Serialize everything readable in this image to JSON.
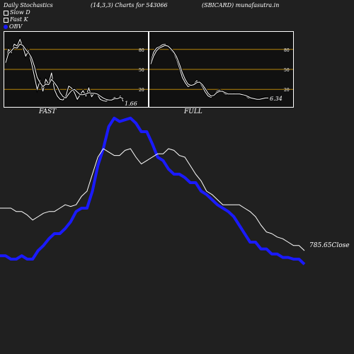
{
  "header": {
    "title": "Daily Stochastics",
    "params": "(14,3,3) Charts for 543066",
    "site": "(SBICARD) munafasutra.in"
  },
  "legend": {
    "slow_d": "Slow  D",
    "fast_k": "Fast K",
    "obv": "OBV"
  },
  "colors": {
    "obv": "#1a1aff",
    "close": "#ffffff",
    "band": "#b8860b",
    "panel_bg": "#111111",
    "bg": "#202020"
  },
  "chart_data": [
    {
      "type": "line",
      "title": "FAST",
      "ylim": [
        0,
        100
      ],
      "ticks": [
        20,
        50,
        80
      ],
      "last_value_label": "1.66",
      "series": [
        {
          "name": "Fast K",
          "values": [
            62,
            80,
            75,
            88,
            85,
            95,
            84,
            70,
            78,
            60,
            40,
            20,
            33,
            17,
            35,
            28,
            45,
            20,
            10,
            5,
            4,
            10,
            25,
            22,
            15,
            5,
            12,
            18,
            10,
            22,
            9,
            15,
            12,
            5,
            3,
            2,
            4,
            5,
            8,
            6,
            10,
            2
          ]
        },
        {
          "name": "Slow  D",
          "values": [
            60,
            74,
            78,
            83,
            82,
            88,
            86,
            80,
            75,
            68,
            55,
            38,
            30,
            24,
            28,
            27,
            35,
            30,
            24,
            15,
            9,
            7,
            13,
            18,
            20,
            16,
            12,
            12,
            13,
            15,
            14,
            14,
            13,
            10,
            7,
            5,
            4,
            4,
            6,
            6,
            8,
            6
          ]
        }
      ]
    },
    {
      "type": "line",
      "title": "FULL",
      "ylim": [
        0,
        100
      ],
      "ticks": [
        20,
        50,
        80
      ],
      "last_value_label": "6.34",
      "series": [
        {
          "name": "Fast K",
          "values": [
            62,
            76,
            82,
            84,
            87,
            88,
            84,
            79,
            74,
            65,
            52,
            38,
            30,
            24,
            26,
            28,
            33,
            30,
            24,
            16,
            10,
            8,
            12,
            17,
            19,
            16,
            13,
            12,
            13,
            14,
            13,
            13,
            12,
            10,
            7,
            6,
            5,
            5,
            6,
            7,
            8,
            6
          ]
        },
        {
          "name": "Slow  D",
          "values": [
            58,
            70,
            78,
            82,
            84,
            86,
            85,
            81,
            76,
            69,
            58,
            45,
            35,
            28,
            26,
            27,
            30,
            31,
            27,
            21,
            14,
            10,
            11,
            15,
            17,
            17,
            15,
            13,
            13,
            13,
            13,
            13,
            12,
            11,
            9,
            7,
            6,
            5,
            5,
            6,
            7,
            7
          ]
        }
      ]
    },
    {
      "type": "line",
      "ylim": [
        0,
        100
      ],
      "last_value_label": "785.65",
      "close_label": "Close",
      "series": [
        {
          "name": "OBV",
          "values": [
            12,
            12,
            10,
            10,
            12,
            10,
            10,
            15,
            18,
            22,
            25,
            25,
            28,
            32,
            38,
            40,
            40,
            50,
            65,
            75,
            88,
            93,
            91,
            92,
            93,
            90,
            85,
            85,
            78,
            70,
            68,
            63,
            60,
            60,
            58,
            55,
            55,
            50,
            48,
            45,
            42,
            40,
            38,
            35,
            30,
            25,
            20,
            20,
            16,
            16,
            13,
            13,
            11,
            11,
            10,
            10,
            7
          ]
        },
        {
          "name": "Close",
          "values": [
            40,
            40,
            40,
            38,
            38,
            36,
            33,
            35,
            37,
            38,
            38,
            40,
            42,
            41,
            42,
            47,
            50,
            60,
            70,
            75,
            73,
            71,
            71,
            74,
            75,
            70,
            66,
            68,
            70,
            72,
            72,
            75,
            74,
            71,
            70,
            65,
            60,
            56,
            50,
            48,
            45,
            42,
            42,
            42,
            42,
            40,
            38,
            35,
            30,
            26,
            25,
            23,
            22,
            20,
            18,
            18,
            15
          ]
        }
      ]
    }
  ]
}
